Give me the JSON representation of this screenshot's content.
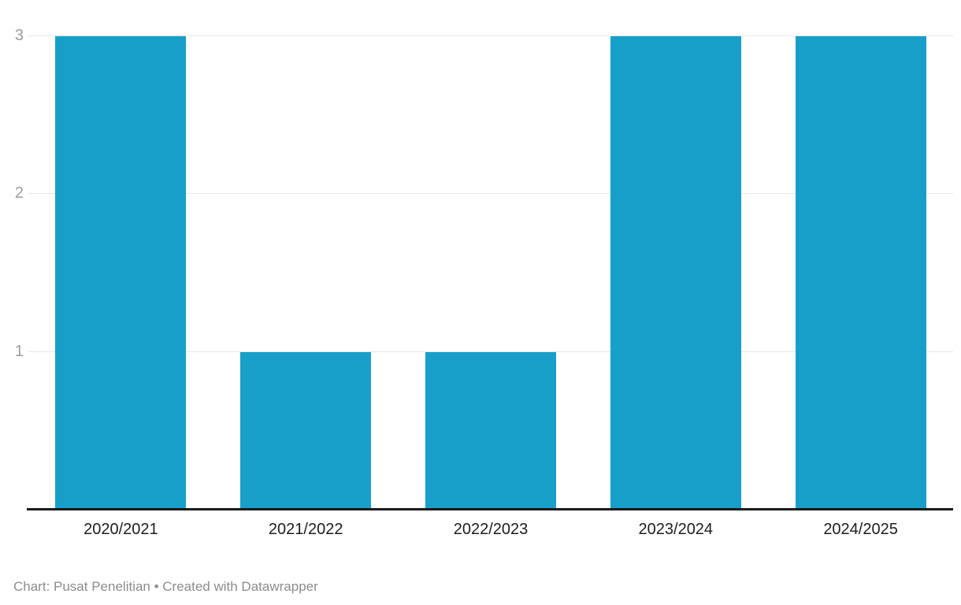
{
  "chart_data": {
    "type": "bar",
    "categories": [
      "2020/2021",
      "2021/2022",
      "2022/2023",
      "2023/2024",
      "2024/2025"
    ],
    "values": [
      3,
      1,
      1,
      3,
      3
    ],
    "title": "",
    "xlabel": "",
    "ylabel": "",
    "ylim": [
      0,
      3
    ],
    "yticks": [
      1,
      2,
      3
    ],
    "grid": true,
    "legend": false,
    "orientation": "vertical"
  },
  "footer": {
    "text": "Chart: Pusat Penelitian • Created with Datawrapper"
  },
  "colors": {
    "bar": "#189fc9",
    "gridline": "#e7e7e7",
    "tick_label": "#9d9d9d",
    "axis_line": "#1a1a1a",
    "x_label": "#1d1d1d",
    "footer_text": "#8c8c8c",
    "background": "#ffffff"
  }
}
